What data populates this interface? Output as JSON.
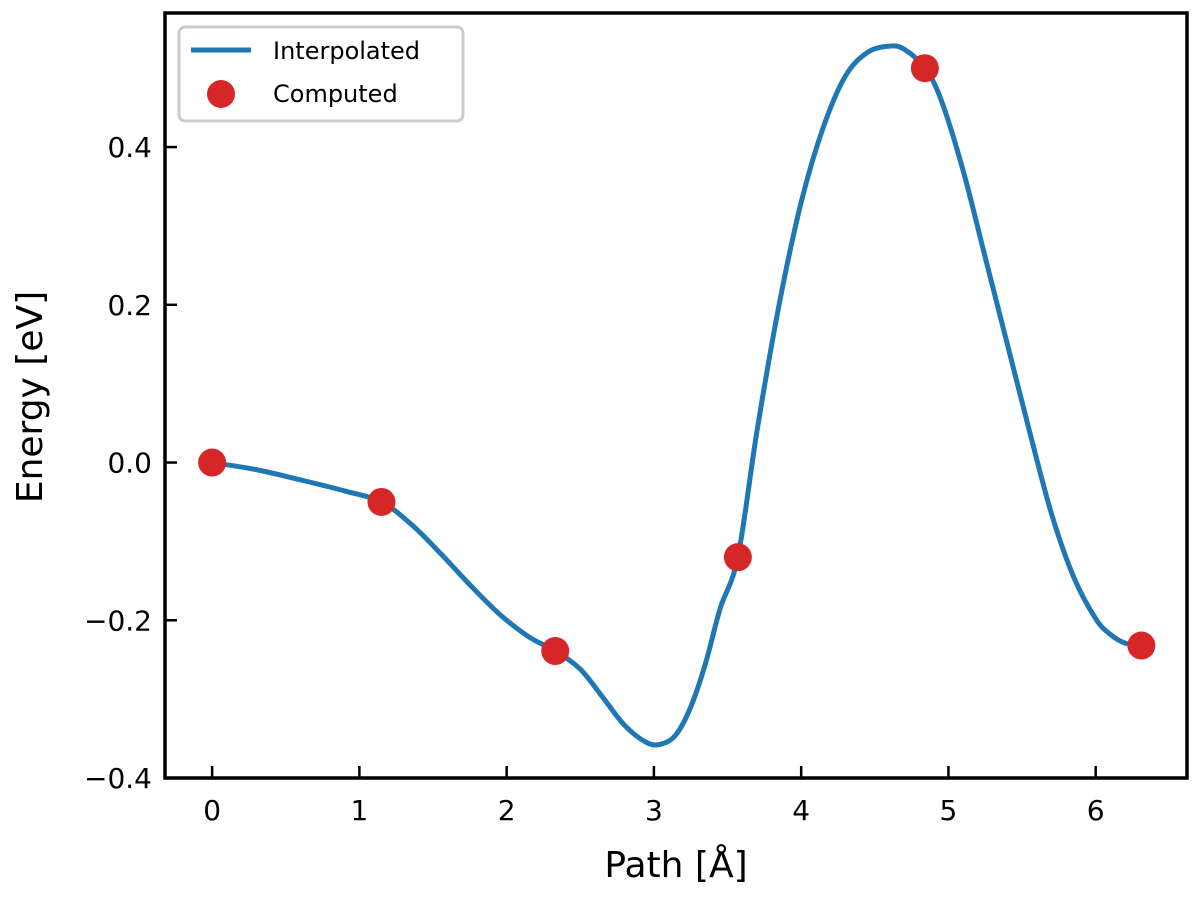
{
  "chart_data": {
    "type": "line",
    "xlabel": "Path [Å]",
    "ylabel": "Energy [eV]",
    "xlim": [
      -0.32,
      6.62
    ],
    "ylim": [
      -0.4,
      0.57
    ],
    "x_ticks": [
      0,
      1,
      2,
      3,
      4,
      5,
      6
    ],
    "x_tick_labels": [
      "0",
      "1",
      "2",
      "3",
      "4",
      "5",
      "6"
    ],
    "y_ticks": [
      -0.4,
      -0.2,
      0.0,
      0.2,
      0.4
    ],
    "y_tick_labels": [
      "−0.4",
      "−0.2",
      "0.0",
      "0.2",
      "0.4"
    ],
    "grid": false,
    "legend_position": "top-left",
    "series": [
      {
        "name": "Interpolated",
        "kind": "line",
        "color": "#1f77b4",
        "x": [
          0.0,
          0.3,
          0.6,
          0.9,
          1.15,
          1.35,
          1.55,
          1.75,
          1.95,
          2.15,
          2.33,
          2.5,
          2.65,
          2.8,
          2.95,
          3.05,
          3.15,
          3.25,
          3.35,
          3.45,
          3.57,
          3.7,
          3.85,
          4.0,
          4.15,
          4.3,
          4.45,
          4.6,
          4.7,
          4.84,
          4.95,
          5.1,
          5.25,
          5.4,
          5.55,
          5.7,
          5.85,
          6.0,
          6.1,
          6.2,
          6.31
        ],
        "y": [
          0.0,
          -0.009,
          -0.022,
          -0.036,
          -0.05,
          -0.078,
          -0.115,
          -0.155,
          -0.192,
          -0.221,
          -0.239,
          -0.262,
          -0.297,
          -0.333,
          -0.355,
          -0.357,
          -0.345,
          -0.31,
          -0.255,
          -0.185,
          -0.12,
          0.04,
          0.2,
          0.33,
          0.425,
          0.49,
          0.52,
          0.528,
          0.524,
          0.5,
          0.46,
          0.37,
          0.26,
          0.15,
          0.04,
          -0.065,
          -0.145,
          -0.198,
          -0.218,
          -0.229,
          -0.232
        ]
      },
      {
        "name": "Computed",
        "kind": "scatter",
        "color": "#d62728",
        "x": [
          0.0,
          1.15,
          2.33,
          3.57,
          4.84,
          6.31
        ],
        "y": [
          0.0,
          -0.05,
          -0.239,
          -0.12,
          0.5,
          -0.232
        ]
      }
    ]
  }
}
